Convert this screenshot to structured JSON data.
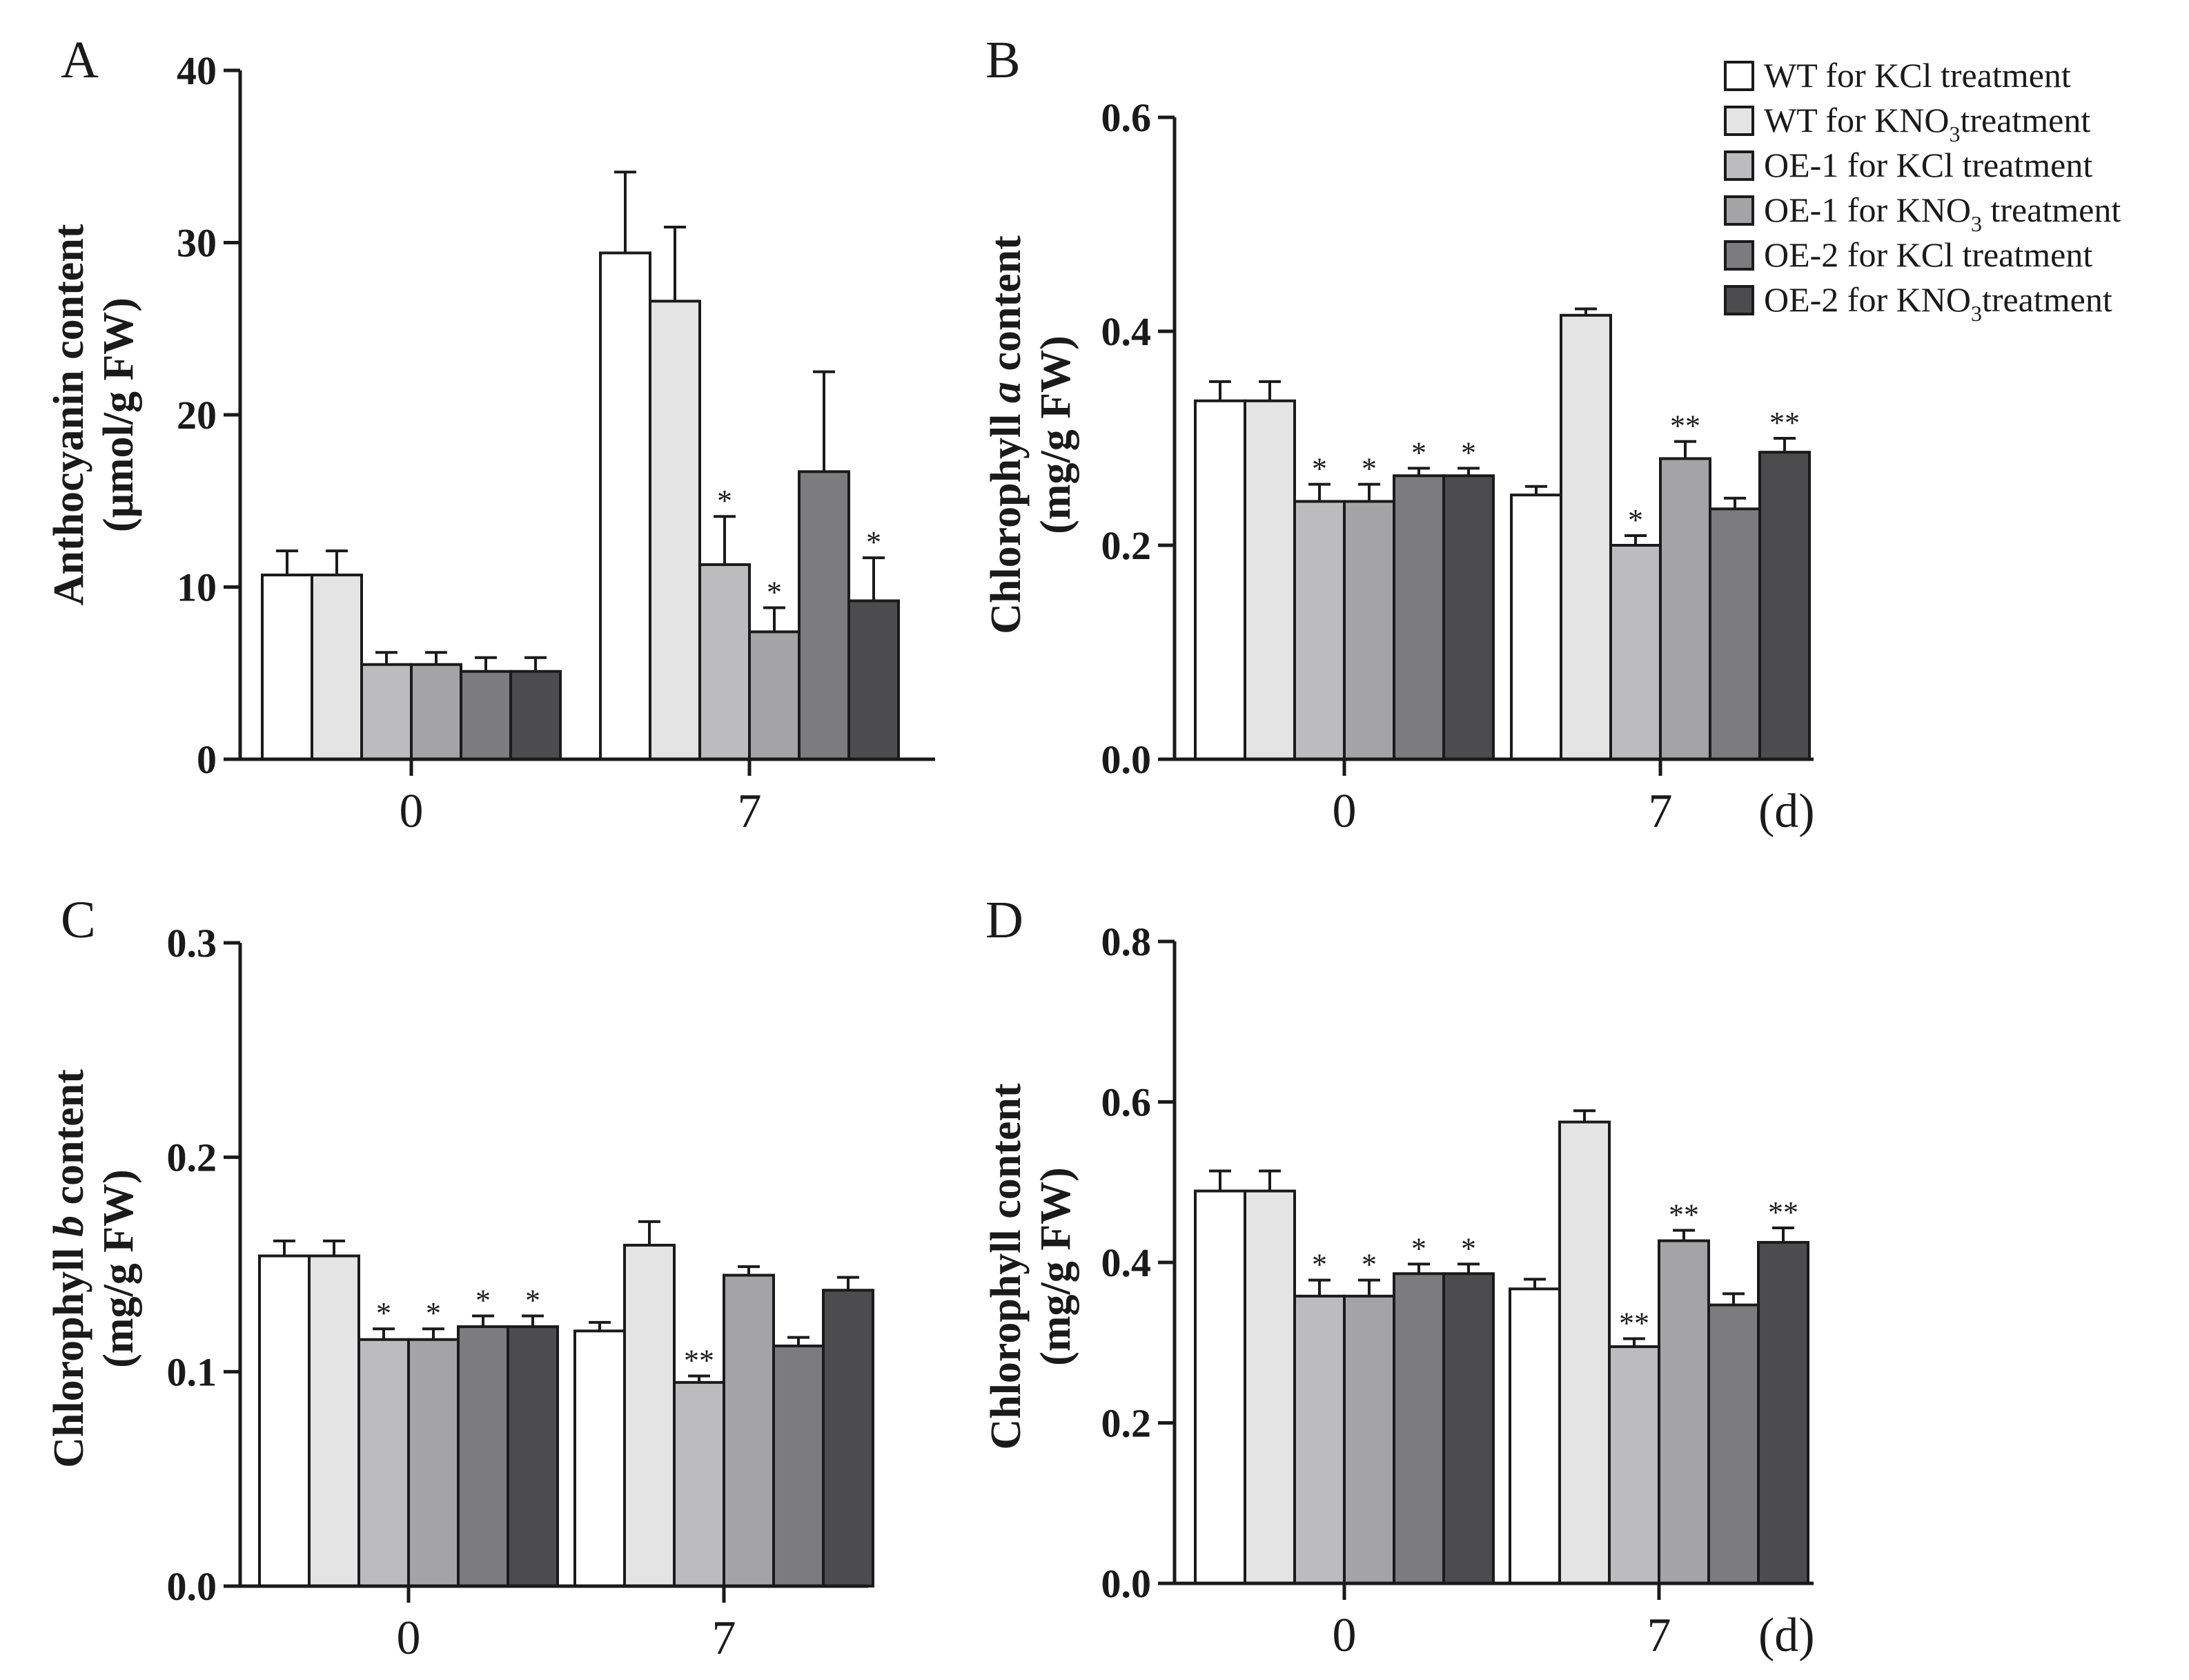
{
  "colors": {
    "WT for KCl treatment": "#ffffff",
    "WT for KNO3 treatment": "#e4e4e4",
    "OE-1 for KCl treatment": "#bcbcbe",
    "OE-1 for KNO3 treatment": "#a4a4a6",
    "OE-2 for KCl treatment": "#7c7c7e",
    "OE-2 for KNO3 treatment": "#4c4c4e"
  },
  "legend": [
    {
      "pre": "WT for KCl treatment",
      "sub": "",
      "post": ""
    },
    {
      "pre": "WT for KNO",
      "sub": "3",
      "post": "treatment"
    },
    {
      "pre": "OE-1 for KCl treatment",
      "sub": "",
      "post": ""
    },
    {
      "pre": "OE-1 for KNO",
      "sub": "3",
      "post": " treatment"
    },
    {
      "pre": "OE-2 for KCl treatment",
      "sub": "",
      "post": ""
    },
    {
      "pre": "OE-2 for KNO",
      "sub": "3",
      "post": "treatment"
    }
  ],
  "chart_data": [
    {
      "panel": "A",
      "type": "bar",
      "ylabel_line1": "Anthocyanin content",
      "ylabel_line2": "(μmol/g FW)",
      "categories": [
        "0",
        "7"
      ],
      "ylim": [
        0,
        40
      ],
      "yticks": [
        "0",
        "10",
        "20",
        "30",
        "40"
      ],
      "series": [
        {
          "name": "WT for KCl treatment",
          "values": [
            10.7,
            29.4
          ],
          "errors": [
            1.4,
            4.7
          ],
          "sig": [
            "",
            ""
          ]
        },
        {
          "name": "WT for KNO3 treatment",
          "values": [
            10.7,
            26.6
          ],
          "errors": [
            1.4,
            4.3
          ],
          "sig": [
            "",
            ""
          ]
        },
        {
          "name": "OE-1 for KCl treatment",
          "values": [
            5.5,
            11.3
          ],
          "errors": [
            0.7,
            2.8
          ],
          "sig": [
            "",
            "*"
          ]
        },
        {
          "name": "OE-1 for KNO3 treatment",
          "values": [
            5.5,
            7.4
          ],
          "errors": [
            0.7,
            1.4
          ],
          "sig": [
            "",
            "*"
          ]
        },
        {
          "name": "OE-2 for KCl treatment",
          "values": [
            5.1,
            16.7
          ],
          "errors": [
            0.8,
            5.8
          ],
          "sig": [
            "",
            ""
          ]
        },
        {
          "name": "OE-2 for KNO3 treatment",
          "values": [
            5.1,
            9.2
          ],
          "errors": [
            0.8,
            2.5
          ],
          "sig": [
            "",
            "*"
          ]
        }
      ]
    },
    {
      "panel": "B",
      "type": "bar",
      "ylabel_line1": "Chlorophyll a content",
      "ylabel_line2": "(mg/g FW)",
      "categories": [
        "0",
        "7"
      ],
      "unit": "(d)",
      "ylim": [
        0,
        0.6
      ],
      "yticks": [
        "0.0",
        "0.2",
        "0.4",
        "0.6"
      ],
      "series": [
        {
          "name": "WT for KCl treatment",
          "values": [
            0.335,
            0.247
          ],
          "errors": [
            0.018,
            0.008
          ],
          "sig": [
            "",
            ""
          ]
        },
        {
          "name": "WT for KNO3 treatment",
          "values": [
            0.335,
            0.415
          ],
          "errors": [
            0.018,
            0.006
          ],
          "sig": [
            "",
            ""
          ]
        },
        {
          "name": "OE-1 for KCl treatment",
          "values": [
            0.241,
            0.2
          ],
          "errors": [
            0.016,
            0.009
          ],
          "sig": [
            "*",
            "*"
          ]
        },
        {
          "name": "OE-1 for KNO3 treatment",
          "values": [
            0.241,
            0.281
          ],
          "errors": [
            0.016,
            0.016
          ],
          "sig": [
            "*",
            "**"
          ]
        },
        {
          "name": "OE-2 for KCl treatment",
          "values": [
            0.265,
            0.234
          ],
          "errors": [
            0.007,
            0.01
          ],
          "sig": [
            "*",
            ""
          ]
        },
        {
          "name": "OE-2 for KNO3 treatment",
          "values": [
            0.265,
            0.287
          ],
          "errors": [
            0.007,
            0.013
          ],
          "sig": [
            "*",
            "**"
          ]
        }
      ]
    },
    {
      "panel": "C",
      "type": "bar",
      "ylabel_line1": "Chlorophyll b content",
      "ylabel_line2": "(mg/g FW)",
      "categories": [
        "0",
        "7"
      ],
      "ylim": [
        0,
        0.3
      ],
      "yticks": [
        "0.0",
        "0.1",
        "0.2",
        "0.3"
      ],
      "series": [
        {
          "name": "WT for KCl treatment",
          "values": [
            0.154,
            0.119
          ],
          "errors": [
            0.007,
            0.004
          ],
          "sig": [
            "",
            ""
          ]
        },
        {
          "name": "WT for KNO3 treatment",
          "values": [
            0.154,
            0.159
          ],
          "errors": [
            0.007,
            0.011
          ],
          "sig": [
            "",
            ""
          ]
        },
        {
          "name": "OE-1 for KCl treatment",
          "values": [
            0.115,
            0.095
          ],
          "errors": [
            0.005,
            0.003
          ],
          "sig": [
            "*",
            "**"
          ]
        },
        {
          "name": "OE-1 for KNO3 treatment",
          "values": [
            0.115,
            0.145
          ],
          "errors": [
            0.005,
            0.004
          ],
          "sig": [
            "*",
            ""
          ]
        },
        {
          "name": "OE-2 for KCl treatment",
          "values": [
            0.121,
            0.112
          ],
          "errors": [
            0.005,
            0.004
          ],
          "sig": [
            "*",
            ""
          ]
        },
        {
          "name": "OE-2 for KNO3 treatment",
          "values": [
            0.121,
            0.138
          ],
          "errors": [
            0.005,
            0.006
          ],
          "sig": [
            "*",
            ""
          ]
        }
      ]
    },
    {
      "panel": "D",
      "type": "bar",
      "ylabel_line1": "Chlorophyll content",
      "ylabel_line2": "(mg/g FW)",
      "categories": [
        "0",
        "7"
      ],
      "unit": "(d)",
      "ylim": [
        0,
        0.8
      ],
      "yticks": [
        "0.0",
        "0.2",
        "0.4",
        "0.6",
        "0.8"
      ],
      "series": [
        {
          "name": "WT for KCl treatment",
          "values": [
            0.489,
            0.367
          ],
          "errors": [
            0.025,
            0.012
          ],
          "sig": [
            "",
            ""
          ]
        },
        {
          "name": "WT for KNO3 treatment",
          "values": [
            0.489,
            0.575
          ],
          "errors": [
            0.025,
            0.014
          ],
          "sig": [
            "",
            ""
          ]
        },
        {
          "name": "OE-1 for KCl treatment",
          "values": [
            0.358,
            0.295
          ],
          "errors": [
            0.02,
            0.01
          ],
          "sig": [
            "*",
            "**"
          ]
        },
        {
          "name": "OE-1 for KNO3 treatment",
          "values": [
            0.358,
            0.427
          ],
          "errors": [
            0.02,
            0.013
          ],
          "sig": [
            "*",
            "**"
          ]
        },
        {
          "name": "OE-2 for KCl treatment",
          "values": [
            0.386,
            0.347
          ],
          "errors": [
            0.012,
            0.014
          ],
          "sig": [
            "*",
            ""
          ]
        },
        {
          "name": "OE-2 for KNO3 treatment",
          "values": [
            0.386,
            0.425
          ],
          "errors": [
            0.012,
            0.018
          ],
          "sig": [
            "*",
            "**"
          ]
        }
      ]
    }
  ]
}
